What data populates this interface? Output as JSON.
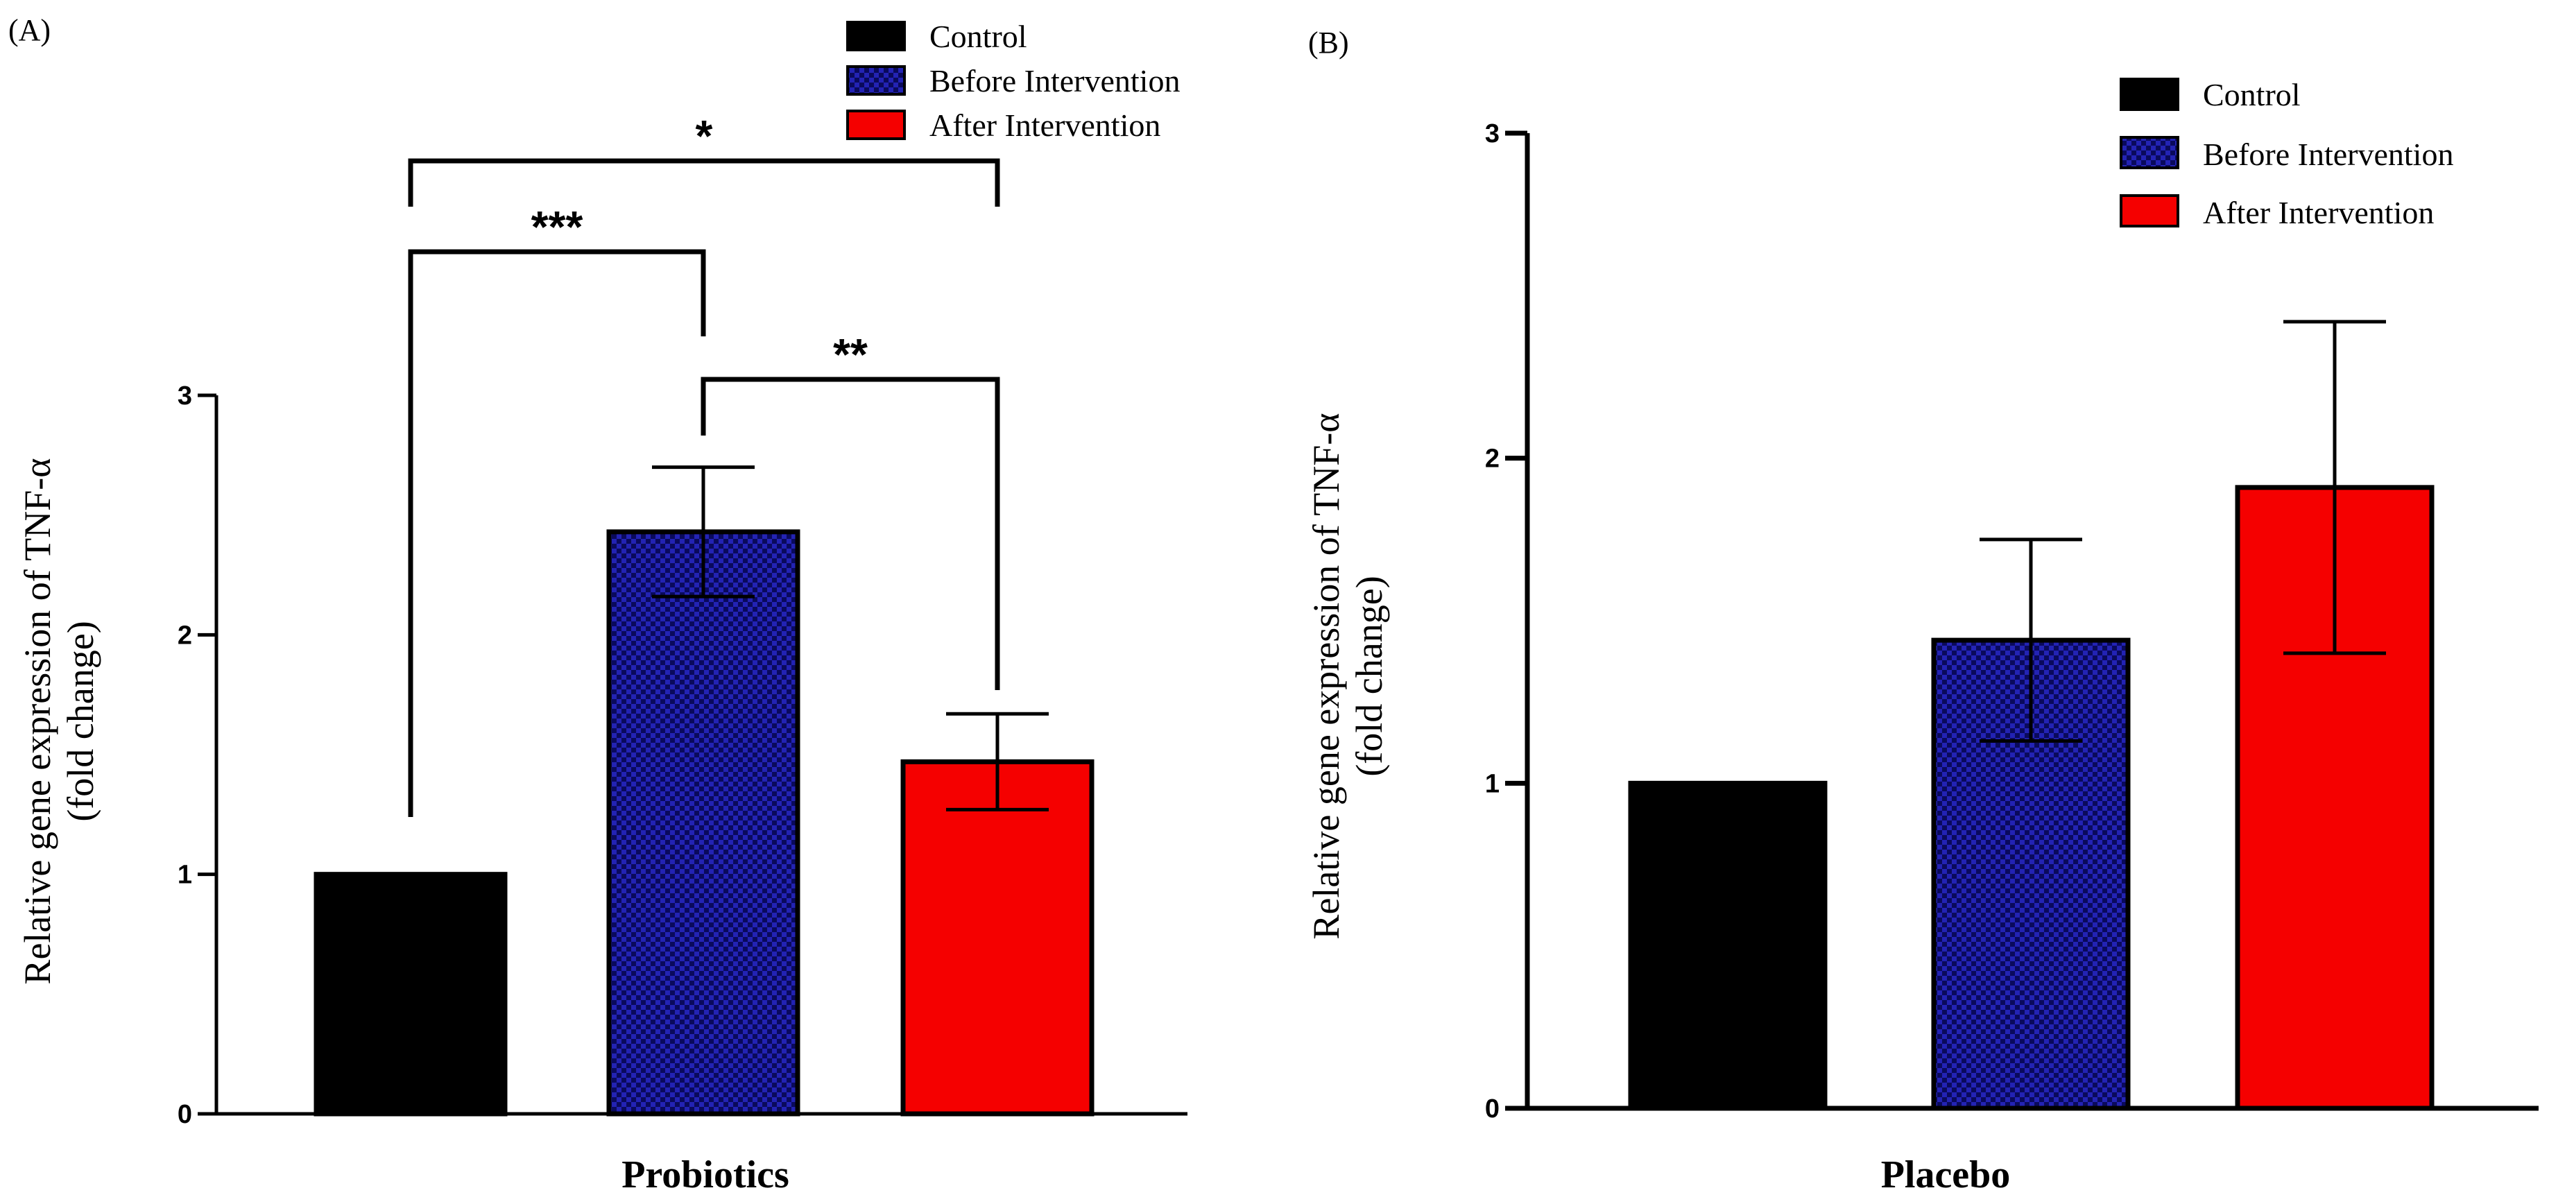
{
  "colors": {
    "control": "#000000",
    "before": "#2323b4",
    "after": "#f50000",
    "axis": "#000000"
  },
  "chart_data": [
    {
      "panel_label": "(A)",
      "type": "bar",
      "title": "",
      "xlabel": "Probiotics",
      "ylabel_line1": "Relative gene expression of TNF-α",
      "ylabel_line2": "(fold change)",
      "ylim": [
        0,
        3
      ],
      "yticks": [
        "0",
        "1",
        "2",
        "3"
      ],
      "categories": [
        "Control",
        "Before Intervention",
        "After Intervention"
      ],
      "values": [
        1.0,
        2.43,
        1.47
      ],
      "error": [
        0,
        0.27,
        0.2
      ],
      "legend": [
        "Control",
        "Before Intervention",
        "After Intervention"
      ],
      "legend_position": "top-right",
      "grid": false,
      "significance": [
        {
          "label": "*",
          "from": "Control",
          "to": "After Intervention"
        },
        {
          "label": "***",
          "from": "Control",
          "to": "Before Intervention"
        },
        {
          "label": "**",
          "from": "Before Intervention",
          "to": "After Intervention"
        }
      ]
    },
    {
      "panel_label": "(B)",
      "type": "bar",
      "title": "",
      "xlabel": "Placebo",
      "ylabel_line1": "Relative gene expression of TNF-α",
      "ylabel_line2": "(fold change)",
      "ylim": [
        0,
        3
      ],
      "yticks": [
        "0",
        "1",
        "2",
        "3"
      ],
      "categories": [
        "Control",
        "Before Intervention",
        "After Intervention"
      ],
      "values": [
        1.0,
        1.44,
        1.91
      ],
      "error": [
        0,
        0.31,
        0.51
      ],
      "legend": [
        "Control",
        "Before Intervention",
        "After Intervention"
      ],
      "legend_position": "top-right",
      "grid": false,
      "significance": []
    }
  ]
}
